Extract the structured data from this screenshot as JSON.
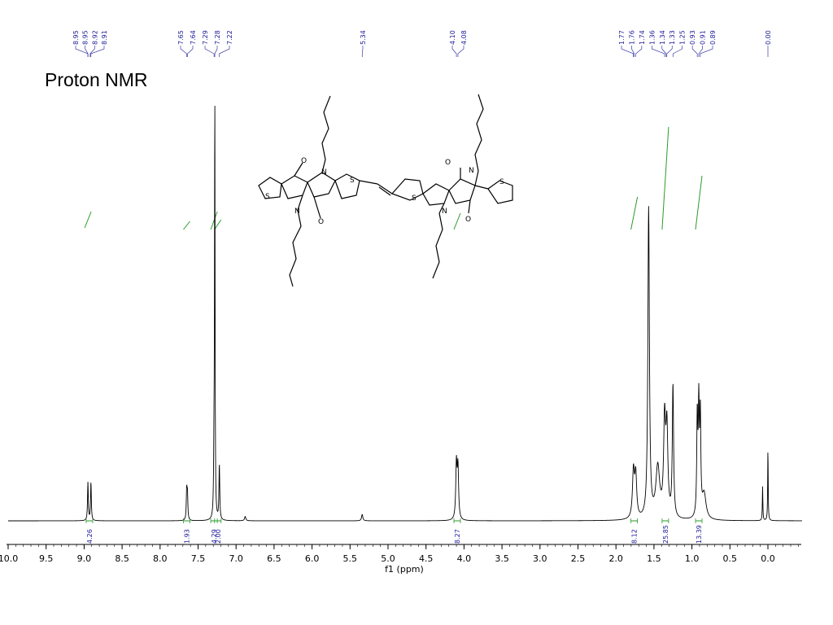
{
  "chart_data": {
    "type": "line",
    "title": "Proton NMR",
    "xlabel": "f1 (ppm)",
    "x_reversed": true,
    "xlim": [
      10.0,
      -0.5
    ],
    "x_ticks": [
      "10.0",
      "9.5",
      "9.0",
      "8.5",
      "8.0",
      "7.5",
      "7.0",
      "6.5",
      "6.0",
      "5.5",
      "5.0",
      "4.5",
      "4.0",
      "3.5",
      "3.0",
      "2.5",
      "2.0",
      "1.5",
      "1.0",
      "0.5",
      "0.0"
    ],
    "peak_labels": [
      {
        "group": 1,
        "labels": [
          "8.95",
          "8.95",
          "8.92",
          "8.91"
        ]
      },
      {
        "group": 2,
        "labels": [
          "7.65",
          "7.64",
          "7.29",
          "7.28",
          "7.22"
        ]
      },
      {
        "group": 3,
        "labels": [
          "5.34"
        ]
      },
      {
        "group": 4,
        "labels": [
          "4.10",
          "4.08"
        ]
      },
      {
        "group": 5,
        "labels": [
          "1.77",
          "1.76",
          "1.74",
          "1.36",
          "1.34",
          "1.33",
          "1.25",
          "0.93",
          "0.91",
          "0.89"
        ]
      },
      {
        "group": 6,
        "labels": [
          "0.00"
        ]
      }
    ],
    "integrals": [
      {
        "ppm": 8.93,
        "value": "4.26"
      },
      {
        "ppm": 7.65,
        "value": "1.93"
      },
      {
        "ppm": 7.29,
        "value": "4.29"
      },
      {
        "ppm": 7.24,
        "value": "2.00"
      },
      {
        "ppm": 4.09,
        "value": "8.27"
      },
      {
        "ppm": 1.76,
        "value": "8.12"
      },
      {
        "ppm": 1.35,
        "value": "25.85"
      },
      {
        "ppm": 0.91,
        "value": "13.39"
      }
    ],
    "peaks": [
      {
        "ppm": 8.95,
        "height": 0.09,
        "width": 0.006
      },
      {
        "ppm": 8.91,
        "height": 0.09,
        "width": 0.006
      },
      {
        "ppm": 7.65,
        "height": 0.07,
        "width": 0.006
      },
      {
        "ppm": 7.64,
        "height": 0.06,
        "width": 0.006
      },
      {
        "ppm": 7.28,
        "height": 1.0,
        "width": 0.004
      },
      {
        "ppm": 7.29,
        "height": 0.15,
        "width": 0.006
      },
      {
        "ppm": 7.22,
        "height": 0.13,
        "width": 0.006
      },
      {
        "ppm": 6.88,
        "height": 0.01,
        "width": 0.01
      },
      {
        "ppm": 5.34,
        "height": 0.015,
        "width": 0.01
      },
      {
        "ppm": 4.1,
        "height": 0.13,
        "width": 0.01
      },
      {
        "ppm": 4.08,
        "height": 0.12,
        "width": 0.01
      },
      {
        "ppm": 1.77,
        "height": 0.11,
        "width": 0.015
      },
      {
        "ppm": 1.74,
        "height": 0.1,
        "width": 0.015
      },
      {
        "ppm": 1.57,
        "height": 0.73,
        "width": 0.012
      },
      {
        "ppm": 1.45,
        "height": 0.12,
        "width": 0.03
      },
      {
        "ppm": 1.36,
        "height": 0.22,
        "width": 0.015
      },
      {
        "ppm": 1.33,
        "height": 0.2,
        "width": 0.015
      },
      {
        "ppm": 1.25,
        "height": 0.31,
        "width": 0.01
      },
      {
        "ppm": 0.93,
        "height": 0.23,
        "width": 0.008
      },
      {
        "ppm": 0.91,
        "height": 0.25,
        "width": 0.008
      },
      {
        "ppm": 0.89,
        "height": 0.23,
        "width": 0.008
      },
      {
        "ppm": 0.84,
        "height": 0.06,
        "width": 0.03
      },
      {
        "ppm": 0.07,
        "height": 0.08,
        "width": 0.004
      },
      {
        "ppm": 0.0,
        "height": 0.17,
        "width": 0.004
      }
    ]
  }
}
